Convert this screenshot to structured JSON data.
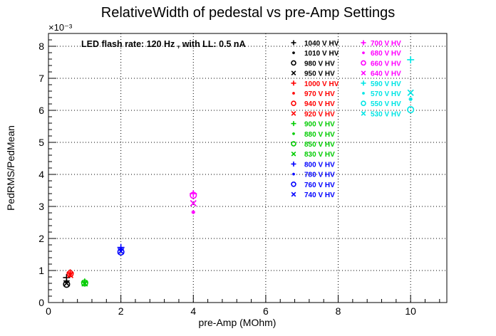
{
  "chart_data": {
    "type": "scatter",
    "title": "RelativeWidth of pedestal vs pre-Amp Settings",
    "xlabel": "pre-Amp (MOhm)",
    "ylabel": "PedRMS/PedMean",
    "y_exponent_label": "×10⁻³",
    "annotation": "LED flash rate: 120 Hz , with LL: 0.5 nA",
    "xlim": [
      0,
      11
    ],
    "ylim": [
      0,
      8.4
    ],
    "x_ticks": [
      0,
      2,
      4,
      6,
      8,
      10
    ],
    "y_ticks": [
      0,
      1,
      2,
      3,
      4,
      5,
      6,
      7,
      8
    ],
    "grid": true,
    "legend_placement": "top-right (two columns)",
    "series": [
      {
        "name": "1040 V HV",
        "color": "#000000",
        "marker": "plus",
        "points": [
          [
            0.5,
            0.78
          ]
        ]
      },
      {
        "name": "1010 V HV",
        "color": "#000000",
        "marker": "star",
        "points": [
          [
            0.5,
            0.65
          ]
        ]
      },
      {
        "name": "980 V HV",
        "color": "#000000",
        "marker": "circle",
        "points": [
          [
            0.5,
            0.57
          ]
        ]
      },
      {
        "name": "950 V HV",
        "color": "#000000",
        "marker": "x",
        "points": [
          [
            0.5,
            0.6
          ]
        ]
      },
      {
        "name": "1000 V HV",
        "color": "#ff0000",
        "marker": "plus",
        "points": [
          [
            0.6,
            0.93
          ]
        ]
      },
      {
        "name": "970 V HV",
        "color": "#ff0000",
        "marker": "star",
        "points": [
          [
            0.6,
            0.88
          ]
        ]
      },
      {
        "name": "940 V HV",
        "color": "#ff0000",
        "marker": "circle",
        "points": [
          [
            0.6,
            0.9
          ]
        ]
      },
      {
        "name": "920 V HV",
        "color": "#ff0000",
        "marker": "x",
        "points": [
          [
            0.6,
            0.86
          ]
        ]
      },
      {
        "name": "900 V HV",
        "color": "#00cc00",
        "marker": "plus",
        "points": [
          [
            1,
            0.64
          ]
        ]
      },
      {
        "name": "880 V HV",
        "color": "#00cc00",
        "marker": "star",
        "points": [
          [
            1,
            0.62
          ]
        ]
      },
      {
        "name": "850 V HV",
        "color": "#00cc00",
        "marker": "circle",
        "points": [
          [
            1,
            0.61
          ]
        ]
      },
      {
        "name": "830 V HV",
        "color": "#00cc00",
        "marker": "x",
        "points": [
          [
            1,
            0.6
          ]
        ]
      },
      {
        "name": "800 V HV",
        "color": "#0000ff",
        "marker": "plus",
        "points": [
          [
            2,
            1.72
          ]
        ]
      },
      {
        "name": "780 V HV",
        "color": "#0000ff",
        "marker": "star",
        "points": [
          [
            2,
            1.66
          ]
        ]
      },
      {
        "name": "760 V HV",
        "color": "#0000ff",
        "marker": "circle",
        "points": [
          [
            2,
            1.58
          ]
        ]
      },
      {
        "name": "740 V HV",
        "color": "#0000ff",
        "marker": "x",
        "points": [
          [
            2,
            1.6
          ]
        ]
      },
      {
        "name": "700 V HV",
        "color": "#ff00ff",
        "marker": "plus",
        "points": [
          [
            4,
            3.4
          ]
        ]
      },
      {
        "name": "680 V HV",
        "color": "#ff00ff",
        "marker": "star",
        "points": [
          [
            4,
            2.82
          ]
        ]
      },
      {
        "name": "660 V HV",
        "color": "#ff00ff",
        "marker": "circle",
        "points": [
          [
            4,
            3.35
          ]
        ]
      },
      {
        "name": "640 V HV",
        "color": "#ff00ff",
        "marker": "x",
        "points": [
          [
            4,
            3.1
          ]
        ]
      },
      {
        "name": "590 V HV",
        "color": "#00e5e5",
        "marker": "plus",
        "points": [
          [
            10,
            7.58
          ]
        ]
      },
      {
        "name": "570 V HV",
        "color": "#00e5e5",
        "marker": "star",
        "points": [
          [
            10,
            6.35
          ]
        ]
      },
      {
        "name": "550 V HV",
        "color": "#00e5e5",
        "marker": "circle",
        "points": [
          [
            10,
            6.02
          ]
        ]
      },
      {
        "name": "530 V HV",
        "color": "#00e5e5",
        "marker": "x",
        "points": [
          [
            10,
            6.55
          ]
        ]
      }
    ]
  }
}
